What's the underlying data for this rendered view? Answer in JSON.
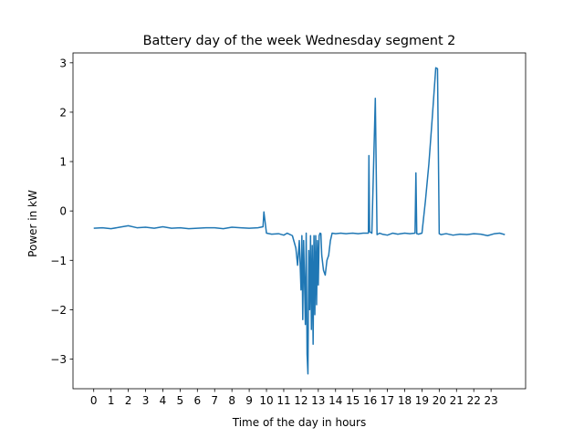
{
  "chart_data": {
    "type": "line",
    "title": "Battery day of the week Wednesday segment 2",
    "xlabel": "Time of the day in hours",
    "ylabel": "Power in kW",
    "xlim": [
      -1.2,
      25.0
    ],
    "ylim": [
      -3.6,
      3.2
    ],
    "xticks": [
      0,
      1,
      2,
      3,
      4,
      5,
      6,
      7,
      8,
      9,
      10,
      11,
      12,
      13,
      14,
      15,
      16,
      17,
      18,
      19,
      20,
      21,
      22,
      23
    ],
    "xtick_labels": [
      "0",
      "1",
      "2",
      "3",
      "4",
      "5",
      "6",
      "7",
      "8",
      "9",
      "10",
      "11",
      "12",
      "13",
      "14",
      "15",
      "16",
      "17",
      "18",
      "19",
      "20",
      "21",
      "22",
      "23"
    ],
    "yticks": [
      -3,
      -2,
      -1,
      0,
      1,
      2,
      3
    ],
    "ytick_labels": [
      "−3",
      "−2",
      "−1",
      "0",
      "1",
      "2",
      "3"
    ],
    "grid": false,
    "legend": "none",
    "series_color": "#1f77b4",
    "series": [
      {
        "x": [
          0,
          0.5,
          1,
          1.5,
          2,
          2.5,
          3,
          3.5,
          4,
          4.5,
          5,
          5.5,
          6,
          6.5,
          7,
          7.5,
          8,
          8.5,
          9,
          9.5,
          9.8,
          9.85,
          10.0,
          10.3,
          10.7,
          11.0,
          11.2,
          11.5,
          11.7,
          11.8,
          11.9,
          12.0,
          12.05,
          12.1,
          12.15,
          12.2,
          12.25,
          12.3,
          12.35,
          12.4,
          12.45,
          12.5,
          12.55,
          12.6,
          12.65,
          12.7,
          12.75,
          12.8,
          12.85,
          12.9,
          12.95,
          13.0,
          13.05,
          13.1,
          13.15,
          13.2,
          13.3,
          13.4,
          13.5,
          13.6,
          13.7,
          13.8,
          14.0,
          14.3,
          14.6,
          15.0,
          15.3,
          15.6,
          15.9,
          15.93,
          15.97,
          16.1,
          16.3,
          16.4,
          16.45,
          16.55,
          16.7,
          17.0,
          17.3,
          17.6,
          18.0,
          18.3,
          18.6,
          18.65,
          18.7,
          18.8,
          19.0,
          19.2,
          19.4,
          19.6,
          19.8,
          19.9,
          20.0,
          20.1,
          20.4,
          20.8,
          21.2,
          21.6,
          22.0,
          22.4,
          22.8,
          23.2,
          23.5,
          23.8
        ],
        "y": [
          -0.35,
          -0.34,
          -0.36,
          -0.33,
          -0.3,
          -0.34,
          -0.33,
          -0.35,
          -0.32,
          -0.35,
          -0.34,
          -0.36,
          -0.35,
          -0.34,
          -0.34,
          -0.36,
          -0.33,
          -0.34,
          -0.35,
          -0.34,
          -0.32,
          -0.02,
          -0.45,
          -0.47,
          -0.46,
          -0.49,
          -0.45,
          -0.5,
          -0.75,
          -1.1,
          -0.6,
          -1.6,
          -0.5,
          -2.2,
          -0.6,
          -1.4,
          -2.3,
          -0.45,
          -2.9,
          -3.3,
          -0.8,
          -2.0,
          -0.5,
          -2.4,
          -0.7,
          -2.7,
          -0.5,
          -2.1,
          -0.5,
          -1.9,
          -0.6,
          -1.5,
          -0.5,
          -0.45,
          -0.46,
          -0.9,
          -1.2,
          -1.3,
          -1.0,
          -0.9,
          -0.6,
          -0.45,
          -0.46,
          -0.45,
          -0.46,
          -0.45,
          -0.46,
          -0.45,
          -0.45,
          1.12,
          -0.42,
          -0.45,
          2.28,
          -0.48,
          -0.47,
          -0.45,
          -0.47,
          -0.49,
          -0.45,
          -0.47,
          -0.45,
          -0.46,
          -0.45,
          0.77,
          -0.46,
          -0.47,
          -0.45,
          0.2,
          0.95,
          1.9,
          2.9,
          2.88,
          -0.46,
          -0.48,
          -0.46,
          -0.49,
          -0.47,
          -0.48,
          -0.46,
          -0.47,
          -0.5,
          -0.46,
          -0.45,
          -0.48
        ]
      }
    ]
  }
}
